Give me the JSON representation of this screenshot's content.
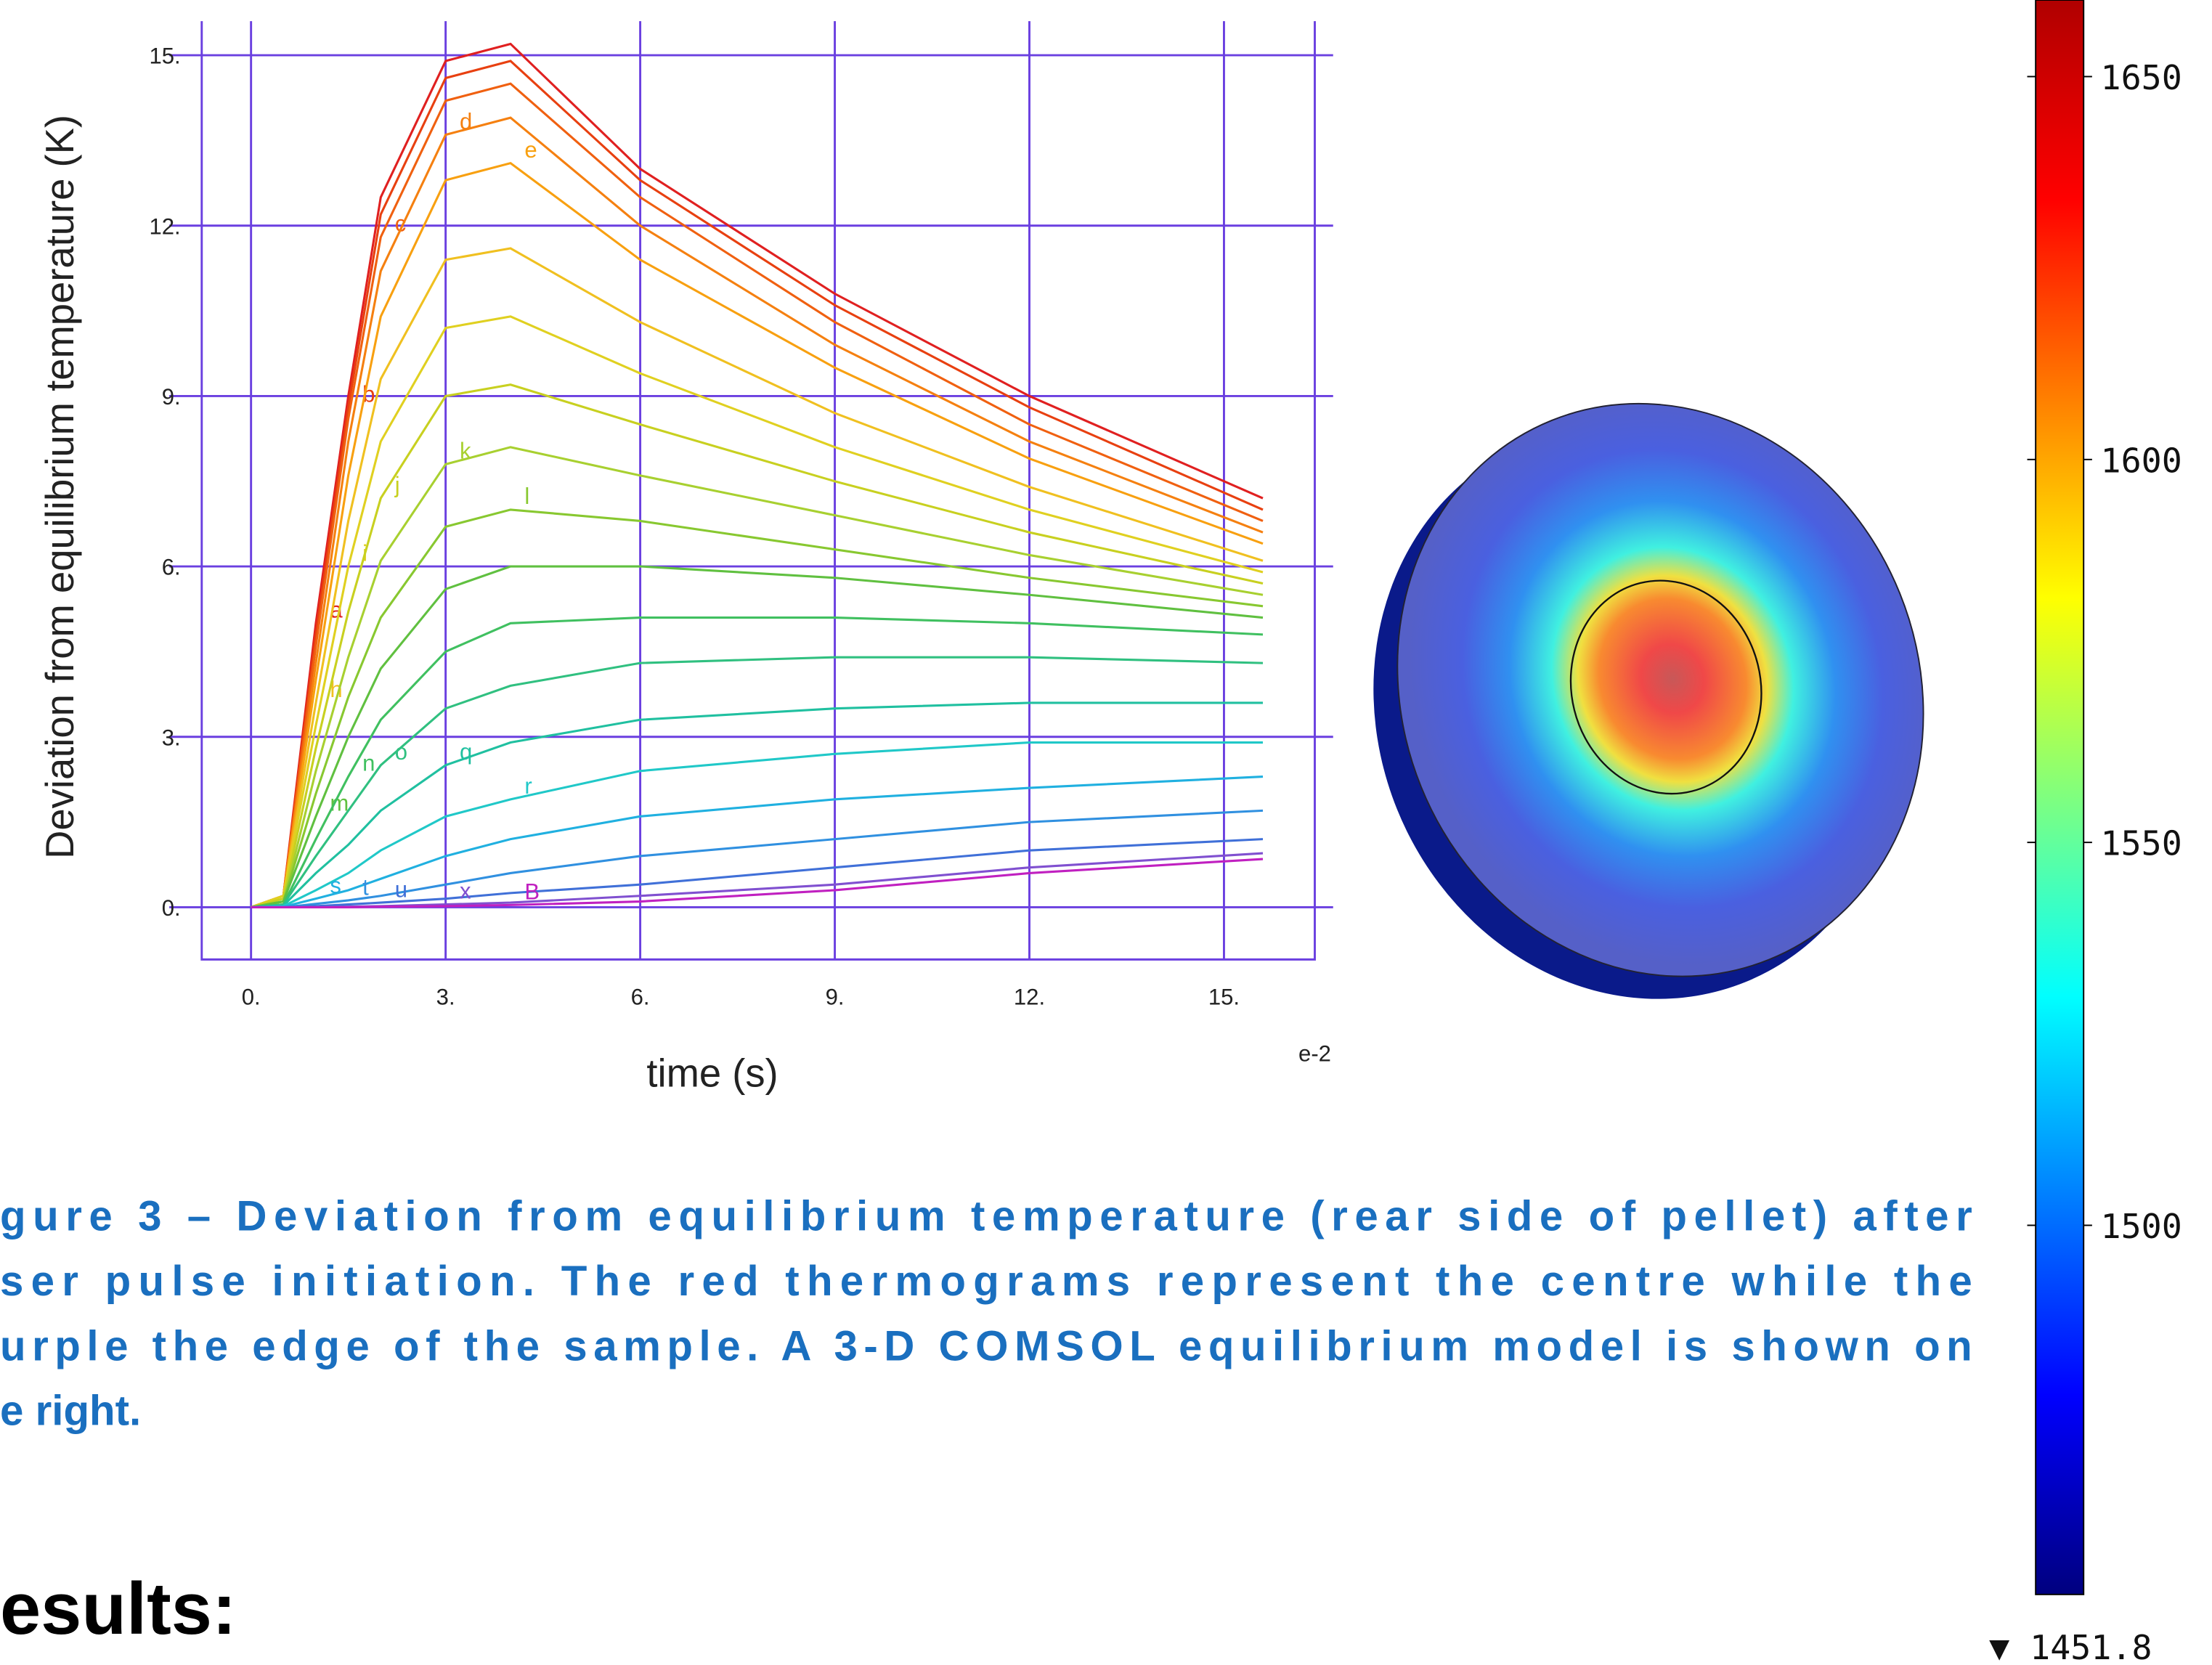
{
  "chart_data": [
    {
      "type": "line",
      "xlabel": "time (s)",
      "ylabel": "Deviation from equilibrium temperature (K)",
      "x_scale_label": "e-2",
      "x": [
        0,
        0.5,
        1,
        1.5,
        2,
        3,
        4,
        6,
        9,
        12,
        15.6
      ],
      "xlim": [
        -0.76,
        16.4
      ],
      "ylim": [
        -0.92,
        15.6
      ],
      "xticks": [
        {
          "value": 0,
          "label": "0."
        },
        {
          "value": 3,
          "label": "3."
        },
        {
          "value": 6,
          "label": "6."
        },
        {
          "value": 9,
          "label": "9."
        },
        {
          "value": 12,
          "label": "12."
        },
        {
          "value": 15,
          "label": "15."
        }
      ],
      "yticks": [
        {
          "value": 0,
          "label": "0."
        },
        {
          "value": 3,
          "label": "3."
        },
        {
          "value": 6,
          "label": "6."
        },
        {
          "value": 9,
          "label": "9."
        },
        {
          "value": 12,
          "label": "12."
        },
        {
          "value": 15,
          "label": "15."
        }
      ],
      "grid": true,
      "grid_color": "#6a3fe0",
      "series": [
        {
          "name": "a",
          "color": "#e02020",
          "values": [
            0,
            0.2,
            5,
            9,
            12.5,
            14.9,
            15.2,
            13.0,
            10.8,
            9.0,
            7.2
          ]
        },
        {
          "name": "b",
          "color": "#e84010",
          "values": [
            0,
            0.2,
            4.8,
            8.8,
            12.2,
            14.6,
            14.9,
            12.8,
            10.6,
            8.8,
            7.0
          ]
        },
        {
          "name": "c",
          "color": "#f06010",
          "values": [
            0,
            0.2,
            4.6,
            8.6,
            11.8,
            14.2,
            14.5,
            12.5,
            10.3,
            8.5,
            6.8
          ]
        },
        {
          "name": "d",
          "color": "#f58010",
          "values": [
            0,
            0.2,
            4.3,
            8.2,
            11.2,
            13.6,
            13.9,
            12.0,
            9.9,
            8.2,
            6.6
          ]
        },
        {
          "name": "e",
          "color": "#f8a010",
          "values": [
            0,
            0.2,
            4.0,
            7.6,
            10.4,
            12.8,
            13.1,
            11.4,
            9.5,
            7.9,
            6.4
          ]
        },
        {
          "name": "h",
          "color": "#f0c020",
          "values": [
            0,
            0.2,
            3.6,
            6.8,
            9.3,
            11.4,
            11.6,
            10.3,
            8.7,
            7.4,
            6.1
          ]
        },
        {
          "name": "i",
          "color": "#e0d020",
          "values": [
            0,
            0.2,
            3.2,
            6.0,
            8.2,
            10.2,
            10.4,
            9.4,
            8.1,
            7.0,
            5.9
          ]
        },
        {
          "name": "j",
          "color": "#c8d020",
          "values": [
            0,
            0.15,
            2.8,
            5.2,
            7.2,
            9.0,
            9.2,
            8.5,
            7.5,
            6.6,
            5.7
          ]
        },
        {
          "name": "k",
          "color": "#a8d030",
          "values": [
            0,
            0.1,
            2.4,
            4.4,
            6.1,
            7.8,
            8.1,
            7.6,
            6.9,
            6.2,
            5.5
          ]
        },
        {
          "name": "l",
          "color": "#88c830",
          "values": [
            0,
            0.1,
            2.0,
            3.7,
            5.1,
            6.7,
            7.0,
            6.8,
            6.3,
            5.8,
            5.3
          ]
        },
        {
          "name": "m",
          "color": "#60c040",
          "values": [
            0,
            0.1,
            1.6,
            3.0,
            4.2,
            5.6,
            6.0,
            6.0,
            5.8,
            5.5,
            5.1
          ]
        },
        {
          "name": "n",
          "color": "#40c060",
          "values": [
            0,
            0.05,
            1.2,
            2.3,
            3.3,
            4.5,
            5.0,
            5.1,
            5.1,
            5.0,
            4.8
          ]
        },
        {
          "name": "o",
          "color": "#30c080",
          "values": [
            0,
            0.05,
            0.9,
            1.7,
            2.5,
            3.5,
            3.9,
            4.3,
            4.4,
            4.4,
            4.3
          ]
        },
        {
          "name": "q",
          "color": "#20c0a0",
          "values": [
            0,
            0.03,
            0.6,
            1.1,
            1.7,
            2.5,
            2.9,
            3.3,
            3.5,
            3.6,
            3.6
          ]
        },
        {
          "name": "r",
          "color": "#20c8c8",
          "values": [
            0,
            0.02,
            0.3,
            0.6,
            1.0,
            1.6,
            1.9,
            2.4,
            2.7,
            2.9,
            2.9
          ]
        },
        {
          "name": "s",
          "color": "#20b0e0",
          "values": [
            0,
            0.01,
            0.15,
            0.3,
            0.5,
            0.9,
            1.2,
            1.6,
            1.9,
            2.1,
            2.3
          ]
        },
        {
          "name": "t",
          "color": "#3090e0",
          "values": [
            0,
            0,
            0.06,
            0.12,
            0.2,
            0.4,
            0.6,
            0.9,
            1.2,
            1.5,
            1.7
          ]
        },
        {
          "name": "u",
          "color": "#4070d8",
          "values": [
            0,
            0,
            0.02,
            0.05,
            0.08,
            0.15,
            0.25,
            0.4,
            0.7,
            1.0,
            1.2
          ]
        },
        {
          "name": "x",
          "color": "#8050d0",
          "values": [
            0,
            0,
            0,
            0.01,
            0.02,
            0.05,
            0.08,
            0.2,
            0.4,
            0.7,
            0.95
          ]
        },
        {
          "name": "B",
          "color": "#c020c0",
          "values": [
            0,
            0,
            0,
            0,
            0.01,
            0.02,
            0.04,
            0.1,
            0.3,
            0.6,
            0.85
          ]
        }
      ]
    },
    {
      "type": "colorbar",
      "ylim": [
        1451.8,
        1660
      ],
      "yticks": [
        1500,
        1550,
        1600,
        1650
      ],
      "min_label": "▼ 1451.8",
      "colors": [
        "#00007f",
        "#0000ff",
        "#007fff",
        "#00ffff",
        "#7fff7f",
        "#ffff00",
        "#ff7f00",
        "#ff0000",
        "#b00000"
      ]
    }
  ],
  "caption": [
    "gure 3 – Deviation from equilibrium temperature (rear side of pellet) after",
    "ser pulse initiation. The red thermograms represent the centre while the",
    "urple the edge of the sample. A 3-D COMSOL equilibrium model is shown on",
    "e right."
  ],
  "heading": "esults:"
}
